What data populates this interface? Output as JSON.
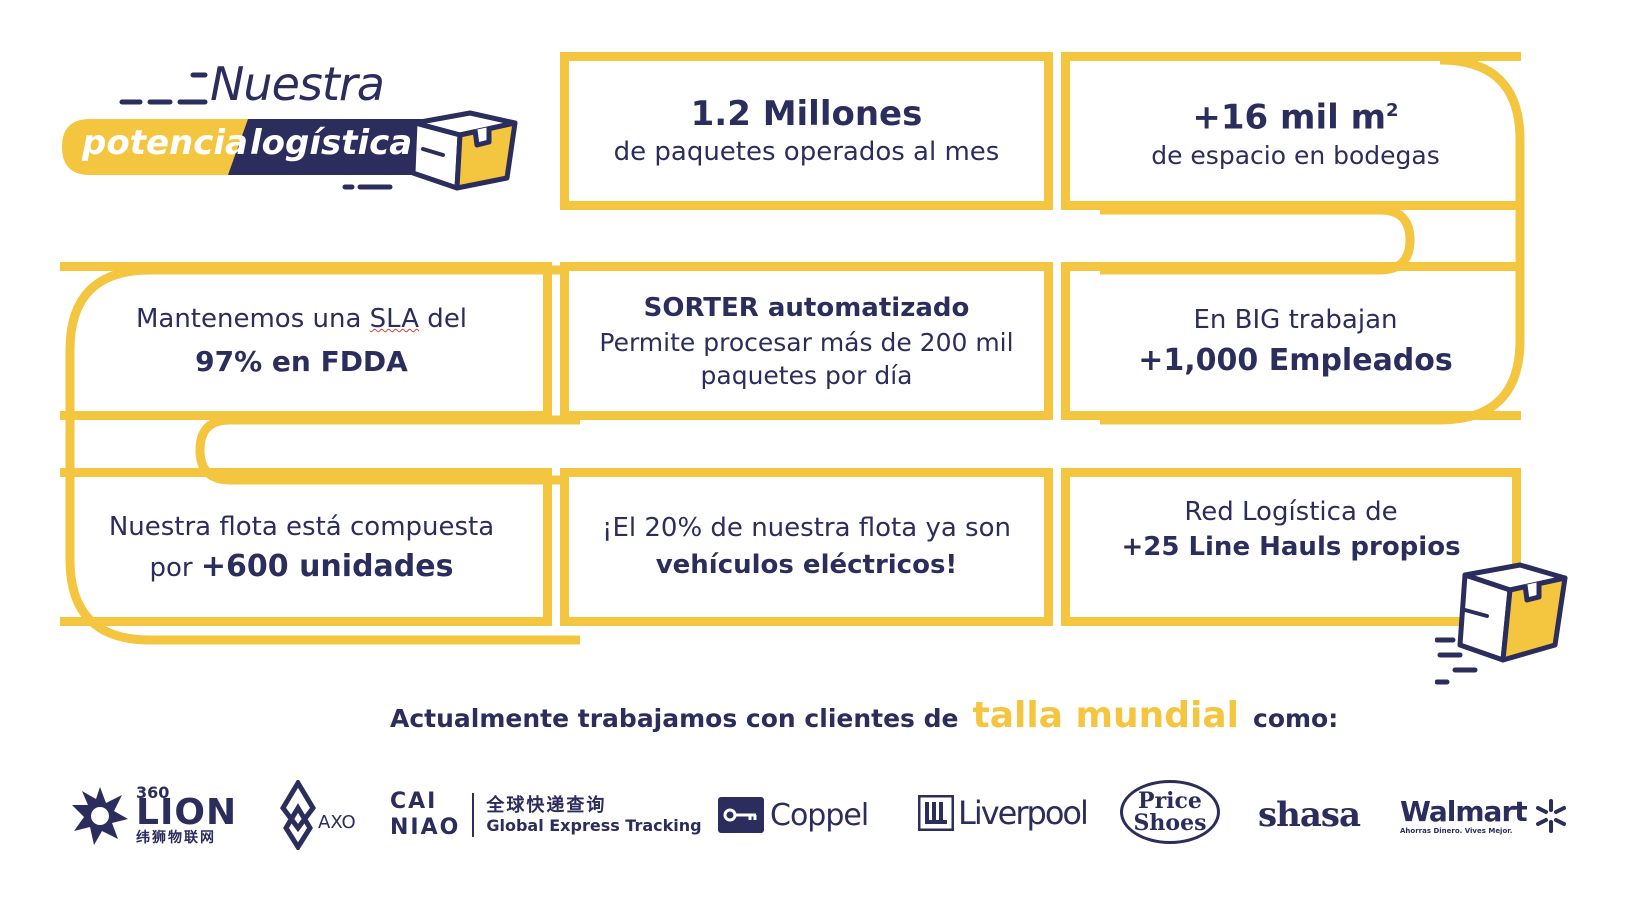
{
  "header": {
    "word1": "Nuestra",
    "word2": "potencia",
    "word3": "logística"
  },
  "cards": {
    "c1": {
      "big": "1.2 Millones",
      "small": "de paquetes operados al mes"
    },
    "c2": {
      "big_prefix": "+16 mil m",
      "big_sup": "2",
      "small": "de espacio en bodegas"
    },
    "c3": {
      "line1_pre": "Mantenemos una ",
      "line1_sla": "SLA",
      "line1_post": " del",
      "big": "97% en FDDA"
    },
    "c4": {
      "title": "SORTER automatizado",
      "line1": "Permite procesar más de 200 mil",
      "line2": "paquetes por día"
    },
    "c5": {
      "line1": "En BIG trabajan",
      "big": "+1,000 Empleados"
    },
    "c6": {
      "line1": "Nuestra flota está compuesta",
      "line2_pre": "por ",
      "line2_big": "+600 unidades"
    },
    "c7": {
      "line1": "¡El 20% de nuestra flota ya son",
      "line2": "vehículos eléctricos!"
    },
    "c8": {
      "line1": "Red Logística de",
      "line2": "+25 Line Hauls propios"
    }
  },
  "clients": {
    "pre": "Actualmente trabajamos con clientes de",
    "highlight": "talla mundial",
    "post": "como:"
  },
  "logos": {
    "lion_num": "360",
    "lion_name": "LION",
    "lion_cn": "纬狮物联网",
    "axo": "AXO",
    "cainiao_top": "CAI",
    "cainiao_bottom": "NIAO",
    "cainiao_cn": "全球快递查询",
    "cainiao_en": "Global Express Tracking",
    "coppel": "Coppel",
    "liverpool": "Liverpool",
    "price": "Price",
    "shoes": "Shoes",
    "shasa": "shasa",
    "walmart": "Walmart",
    "walmart_tag": "Ahorras Dinero. Vives Mejor."
  },
  "colors": {
    "accent": "#f4c53f",
    "navy": "#2b2d5c"
  }
}
